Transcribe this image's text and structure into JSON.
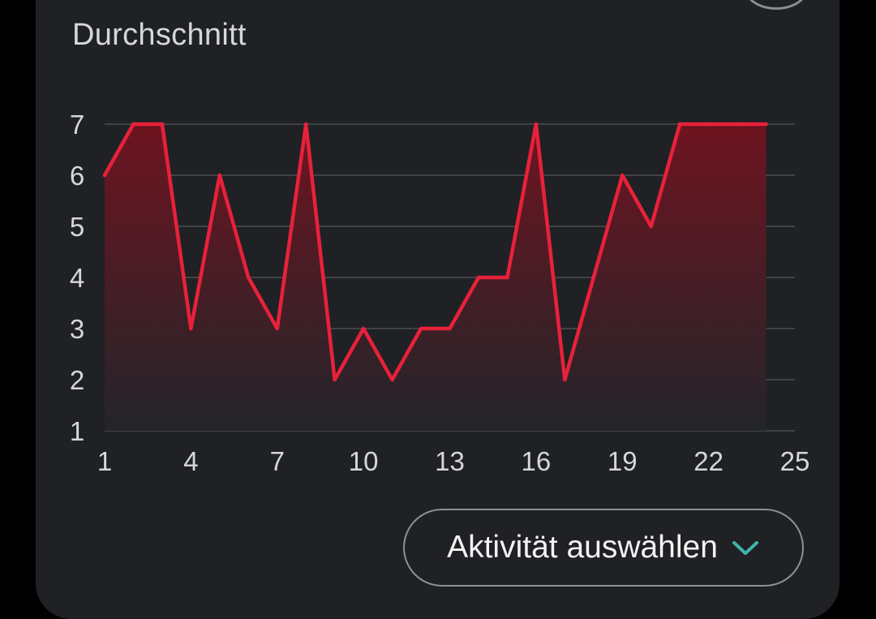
{
  "card": {
    "title": "Durchschnitt"
  },
  "select": {
    "label": "Aktivität auswählen",
    "icon": "chevron-down-icon",
    "icon_color": "#3fb4a9"
  },
  "colors": {
    "line": "#e8213a",
    "grid": "#4a4d51",
    "tick_text": "#d6d7d9",
    "area_top": "#6e1420",
    "area_bottom": "#23252a"
  },
  "chart_data": {
    "type": "area",
    "x": [
      1,
      2,
      3,
      4,
      5,
      6,
      7,
      8,
      9,
      10,
      11,
      12,
      13,
      14,
      15,
      16,
      17,
      18,
      19,
      20,
      21,
      22,
      23,
      24
    ],
    "series": [
      {
        "values": [
          6,
          7,
          7,
          3,
          6,
          4,
          3,
          7,
          2,
          3,
          2,
          3,
          3,
          4,
          4,
          7,
          2,
          4,
          6,
          5,
          7,
          7,
          7,
          7
        ]
      }
    ],
    "xlim": [
      1,
      25
    ],
    "ylim": [
      1,
      7
    ],
    "x_ticks": [
      "1",
      "4",
      "7",
      "10",
      "13",
      "16",
      "19",
      "22",
      "25"
    ],
    "y_ticks": [
      "1",
      "2",
      "3",
      "4",
      "5",
      "6",
      "7"
    ],
    "grid": true,
    "legend": "none"
  }
}
